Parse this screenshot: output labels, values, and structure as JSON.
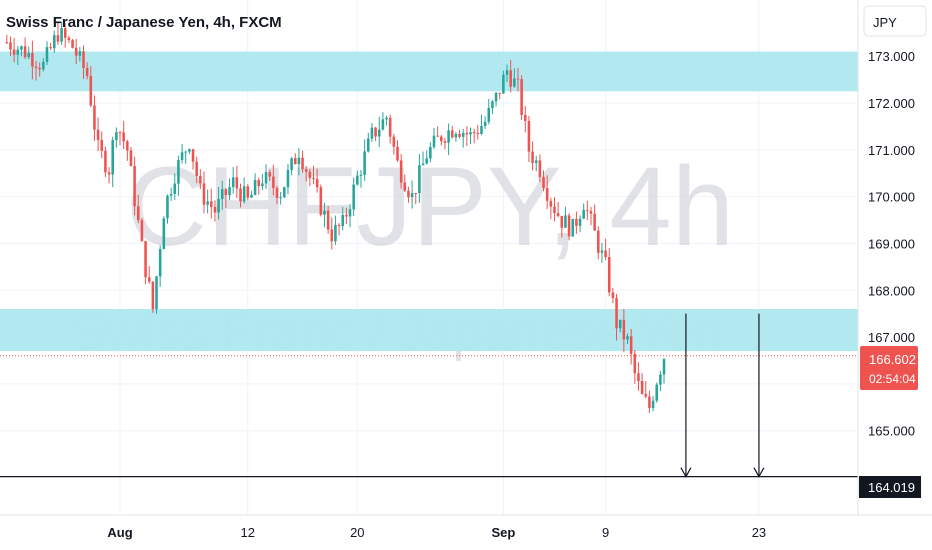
{
  "header": {
    "symbol_title": "Swiss Franc / Japanese Yen, 4h, FXCM"
  },
  "watermark": {
    "ticker": "CHFJPY, 4h",
    "name": "Swiss Franc / Japanese Yen"
  },
  "price_axis": {
    "currency": "JPY"
  },
  "last_price": {
    "value": "166.602",
    "countdown": "02:54:04"
  },
  "target_line": {
    "value": "164.019"
  },
  "colors": {
    "up": "#26a69a",
    "down": "#ef5350",
    "zone": "#aee8f0",
    "grid": "#f0f3fa",
    "price_tag": "#ef5350",
    "text": "#131722"
  },
  "chart_data": {
    "type": "candlestick",
    "title": "Swiss Franc / Japanese Yen, 4h, FXCM",
    "timeframe": "4h",
    "y_unit": "JPY",
    "ylim": [
      163.2,
      174.2
    ],
    "y_ticks": [
      "173.000",
      "172.000",
      "171.000",
      "170.000",
      "169.000",
      "168.000",
      "167.000",
      "166.000",
      "165.000"
    ],
    "x_ticks": [
      "Aug",
      "12",
      "20",
      "Sep",
      "9",
      "23"
    ],
    "x_tick_bar_index": [
      31,
      66,
      96,
      136,
      164,
      206
    ],
    "n_bars": 235,
    "ohlc_close_path": [
      [
        0,
        173.3
      ],
      [
        5,
        173.1
      ],
      [
        10,
        172.8
      ],
      [
        14,
        173.5
      ],
      [
        18,
        173.2
      ],
      [
        22,
        172.6
      ],
      [
        25,
        171.0
      ],
      [
        28,
        170.6
      ],
      [
        30,
        171.6
      ],
      [
        33,
        171.0
      ],
      [
        37,
        168.9
      ],
      [
        40,
        167.6
      ],
      [
        43,
        169.7
      ],
      [
        46,
        170.5
      ],
      [
        50,
        171.2
      ],
      [
        53,
        170.1
      ],
      [
        57,
        169.7
      ],
      [
        62,
        170.3
      ],
      [
        66,
        169.9
      ],
      [
        70,
        170.4
      ],
      [
        75,
        170.1
      ],
      [
        80,
        171.0
      ],
      [
        85,
        170.0
      ],
      [
        89,
        169.2
      ],
      [
        92,
        169.4
      ],
      [
        96,
        170.4
      ],
      [
        100,
        171.3
      ],
      [
        104,
        171.7
      ],
      [
        107,
        170.7
      ],
      [
        111,
        170.0
      ],
      [
        115,
        170.9
      ],
      [
        119,
        171.3
      ],
      [
        123,
        171.5
      ],
      [
        127,
        171.3
      ],
      [
        131,
        171.6
      ],
      [
        134,
        172.1
      ],
      [
        137,
        172.7
      ],
      [
        140,
        172.3
      ],
      [
        143,
        171.0
      ],
      [
        146,
        170.6
      ],
      [
        149,
        169.9
      ],
      [
        152,
        169.5
      ],
      [
        155,
        169.3
      ],
      [
        158,
        169.9
      ],
      [
        161,
        169.2
      ],
      [
        164,
        168.5
      ],
      [
        167,
        167.3
      ],
      [
        170,
        166.9
      ],
      [
        172,
        166.2
      ],
      [
        174,
        165.7
      ],
      [
        176,
        165.5
      ],
      [
        178,
        166.1
      ],
      [
        180,
        166.6
      ]
    ],
    "zones": [
      {
        "from": 172.25,
        "to": 173.1
      },
      {
        "from": 166.7,
        "to": 167.6
      }
    ],
    "horizontal_line": 164.019,
    "last_price": 166.602,
    "projection_arrows": [
      {
        "bar": 186,
        "from": 167.5,
        "to": 164.019
      },
      {
        "bar": 206,
        "from": 167.5,
        "to": 164.019
      }
    ],
    "grid": true,
    "legend": "top-left"
  }
}
